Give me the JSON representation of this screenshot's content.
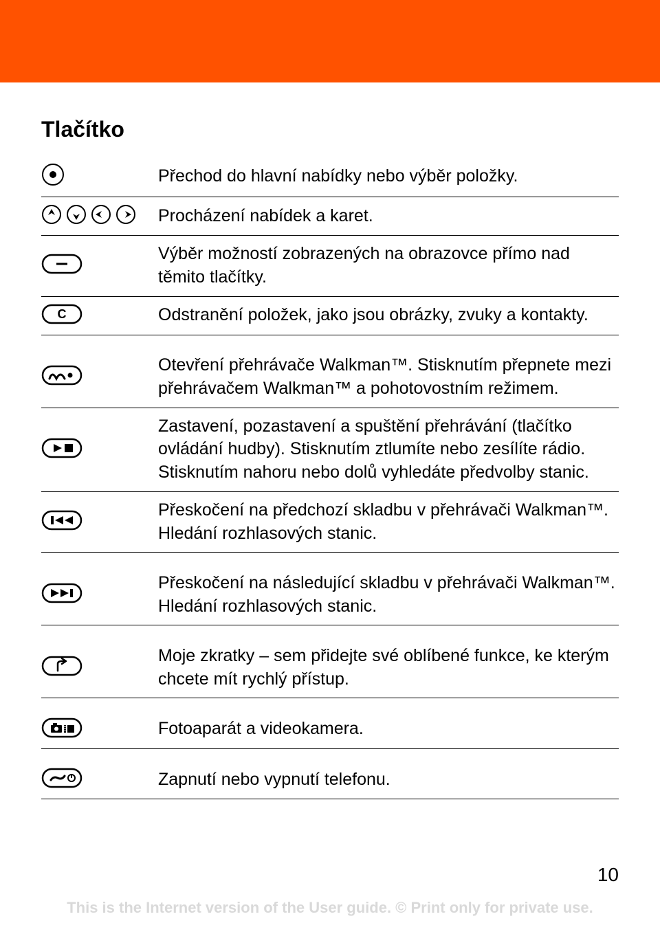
{
  "colors": {
    "header_bg": "#ff5200",
    "page_bg": "#ffffff",
    "text": "#000000",
    "footer_text": "#d9d9d9",
    "divider": "#000000"
  },
  "typography": {
    "title_fontsize": 32,
    "body_fontsize": 25,
    "footer_fontsize": 22,
    "pagenum_fontsize": 28,
    "title_weight": "bold"
  },
  "section_title": "Tlačítko",
  "rows": [
    {
      "icon": "center-dot",
      "text": "Přechod do hlavní nabídky nebo výběr položky.",
      "divider": true
    },
    {
      "icon": "nav-4way",
      "text": "Procházení nabídek a karet.",
      "divider": true
    },
    {
      "icon": "softkey-dash",
      "text": "Výběr možností zobrazených na obrazovce přímo nad těmito tlačítky.",
      "divider": true
    },
    {
      "icon": "c-key",
      "text": "Odstranění položek, jako jsou obrázky, zvuky a kontakty.",
      "divider": true
    },
    {
      "icon": "spacer",
      "text": "",
      "divider": false
    },
    {
      "icon": "walkman",
      "text": "Otevření přehrávače Walkman™. Stisknutím přepnete mezi přehrávačem Walkman™ a pohotovostním režimem.",
      "divider": true
    },
    {
      "icon": "play-stop",
      "text": "Zastavení, pozastavení a spuštění přehrávání (tlačítko ovládání hudby). Stisknutím ztlumíte nebo zesílíte rádio. Stisknutím nahoru nebo dolů vyhledáte předvolby stanic.",
      "divider": true
    },
    {
      "icon": "prev-track",
      "text": "Přeskočení na předchozí skladbu v přehrávači Walkman™. Hledání rozhlasových stanic.",
      "divider": true
    },
    {
      "icon": "spacer",
      "text": "",
      "divider": false
    },
    {
      "icon": "next-track",
      "text": "Přeskočení na následující skladbu v přehrávači Walkman™. Hledání rozhlasových stanic.",
      "divider": true
    },
    {
      "icon": "spacer",
      "text": "",
      "divider": false
    },
    {
      "icon": "shortcut",
      "text": "Moje zkratky – sem přidejte své oblíbené funkce, ke kterým chcete mít rychlý přístup.",
      "divider": true
    },
    {
      "icon": "spacer",
      "text": "",
      "divider": false
    },
    {
      "icon": "camera",
      "text": "Fotoaparát a videokamera.",
      "divider": true
    },
    {
      "icon": "spacer",
      "text": "",
      "divider": false
    },
    {
      "icon": "power",
      "text": "Zapnutí nebo vypnutí telefonu.",
      "divider": true
    }
  ],
  "page_number": "10",
  "footer": "This is the Internet version of the User guide. © Print only for private use."
}
